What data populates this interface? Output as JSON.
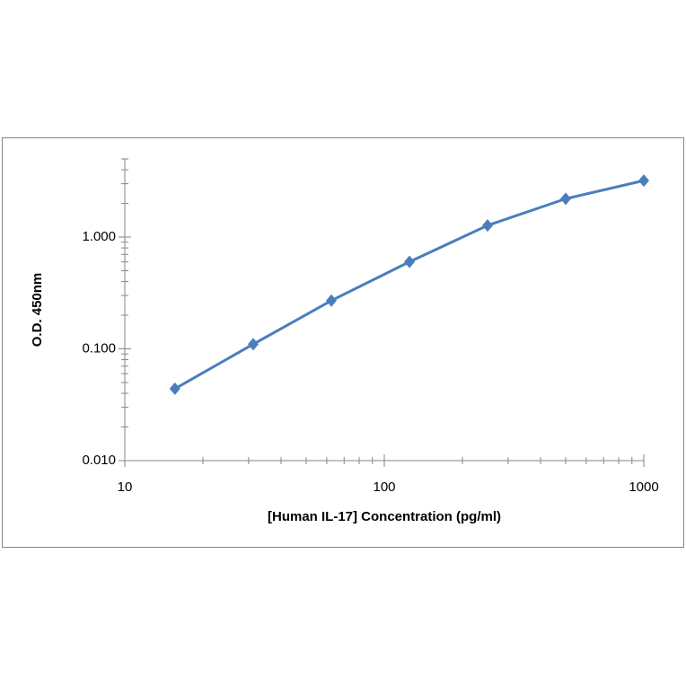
{
  "chart_data": {
    "type": "line",
    "xlabel": "[Human IL-17] Concentration (pg/ml)",
    "ylabel": "O.D. 450nm",
    "x": [
      15.6,
      31.25,
      62.5,
      125,
      250,
      500,
      1000
    ],
    "values": [
      0.044,
      0.11,
      0.27,
      0.6,
      1.27,
      2.2,
      3.2
    ],
    "color": "#4a7ebb",
    "xscale": "log",
    "yscale": "log",
    "xlim": [
      10,
      1000
    ],
    "ylim": [
      0.01,
      5
    ],
    "xticks": [
      10,
      100,
      1000
    ],
    "yticks": [
      {
        "value": 0.01,
        "label": "0.010"
      },
      {
        "value": 0.1,
        "label": "0.100"
      },
      {
        "value": 1,
        "label": "1.000"
      }
    ],
    "minor_ticks": true,
    "grid": false,
    "markers": "diamond"
  }
}
